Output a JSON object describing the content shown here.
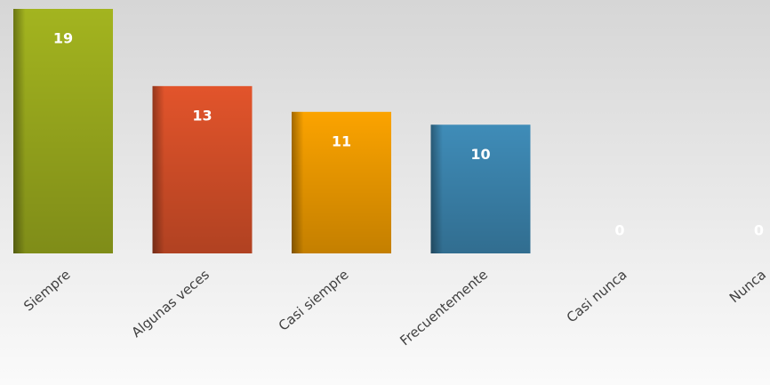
{
  "chart_data": {
    "type": "bar",
    "categories": [
      "Siempre",
      "Algunas veces",
      "Casi siempre",
      "Frecuentemente",
      "Casi nunca",
      "Nunca"
    ],
    "values": [
      19,
      13,
      11,
      10,
      0,
      0
    ],
    "colors": [
      "#a3b41f",
      "#e2542b",
      "#fba300",
      "#3f8cb8",
      "#9aab1e",
      "#9aab1e"
    ],
    "ylim": [
      0,
      19
    ]
  }
}
